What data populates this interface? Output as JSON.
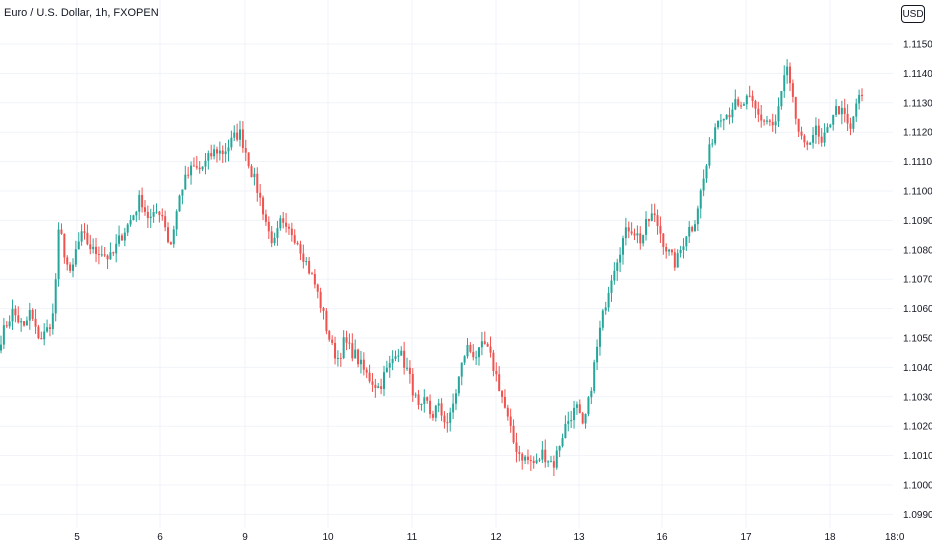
{
  "header": {
    "title": "Euro / U.S. Dollar, 1h, FXOPEN"
  },
  "currency_button": {
    "label": "USD"
  },
  "colors": {
    "up": "#26a69a",
    "down": "#ef5350",
    "grid": "#f0f3fa",
    "text": "#131722"
  },
  "chart_data": {
    "type": "candlestick",
    "symbol": "Euro / U.S. Dollar",
    "interval": "1h",
    "source": "FXOPEN",
    "currency": "USD",
    "y_tick_labels": [
      "1.11500",
      "1.11400",
      "1.11300",
      "1.11200",
      "1.11100",
      "1.11000",
      "1.10900",
      "1.10800",
      "1.10700",
      "1.10600",
      "1.10500",
      "1.10400",
      "1.10300",
      "1.10200",
      "1.10100",
      "1.10000",
      "1.09900"
    ],
    "x_tick_labels": [
      "5",
      "6",
      "9",
      "10",
      "11",
      "12",
      "13",
      "16",
      "17",
      "18",
      "18:0"
    ],
    "ylim": [
      1.0986,
      1.1162
    ],
    "grid": true,
    "anchors": [
      [
        0,
        1.105
      ],
      [
        1,
        1.1055
      ],
      [
        2,
        1.1059
      ],
      [
        3,
        1.1056
      ],
      [
        4,
        1.1053
      ],
      [
        5,
        1.1059
      ],
      [
        6,
        1.1052
      ],
      [
        7,
        1.105
      ],
      [
        8,
        1.1053
      ],
      [
        9,
        1.1058
      ],
      [
        10,
        1.1088
      ],
      [
        11,
        1.1078
      ],
      [
        12,
        1.107
      ],
      [
        13,
        1.1081
      ],
      [
        14,
        1.1085
      ],
      [
        15,
        1.1082
      ],
      [
        16,
        1.1079
      ],
      [
        17,
        1.108
      ],
      [
        18,
        1.1078
      ],
      [
        19,
        1.1077
      ],
      [
        20,
        1.1082
      ],
      [
        21,
        1.1086
      ],
      [
        22,
        1.1089
      ],
      [
        23,
        1.1093
      ],
      [
        24,
        1.1098
      ],
      [
        25,
        1.1092
      ],
      [
        26,
        1.109
      ],
      [
        27,
        1.1094
      ],
      [
        28,
        1.1091
      ],
      [
        29,
        1.108
      ],
      [
        30,
        1.1091
      ],
      [
        31,
        1.1101
      ],
      [
        32,
        1.1105
      ],
      [
        33,
        1.1108
      ],
      [
        34,
        1.1107
      ],
      [
        35,
        1.1109
      ],
      [
        36,
        1.1112
      ],
      [
        37,
        1.1114
      ],
      [
        38,
        1.1113
      ],
      [
        39,
        1.1115
      ],
      [
        40,
        1.1118
      ],
      [
        41,
        1.112
      ],
      [
        42,
        1.1114
      ],
      [
        43,
        1.1107
      ],
      [
        44,
        1.1101
      ],
      [
        45,
        1.1094
      ],
      [
        46,
        1.1086
      ],
      [
        47,
        1.1082
      ],
      [
        48,
        1.1089
      ],
      [
        49,
        1.1086
      ],
      [
        50,
        1.1086
      ],
      [
        51,
        1.1083
      ],
      [
        52,
        1.1078
      ],
      [
        53,
        1.1073
      ],
      [
        54,
        1.1068
      ],
      [
        55,
        1.1061
      ],
      [
        56,
        1.1053
      ],
      [
        57,
        1.1046
      ],
      [
        58,
        1.1043
      ],
      [
        59,
        1.1049
      ],
      [
        60,
        1.1046
      ],
      [
        61,
        1.1044
      ],
      [
        62,
        1.104
      ],
      [
        63,
        1.1037
      ],
      [
        64,
        1.1035
      ],
      [
        65,
        1.1033
      ],
      [
        66,
        1.1038
      ],
      [
        67,
        1.1041
      ],
      [
        68,
        1.1047
      ],
      [
        69,
        1.1043
      ],
      [
        70,
        1.1038
      ],
      [
        71,
        1.1031
      ],
      [
        72,
        1.1024
      ],
      [
        73,
        1.1029
      ],
      [
        74,
        1.1023
      ],
      [
        75,
        1.1027
      ],
      [
        76,
        1.1023
      ],
      [
        77,
        1.1021
      ],
      [
        78,
        1.103
      ],
      [
        79,
        1.1039
      ],
      [
        80,
        1.1047
      ],
      [
        81,
        1.1045
      ],
      [
        82,
        1.1044
      ],
      [
        83,
        1.1048
      ],
      [
        84,
        1.1044
      ],
      [
        85,
        1.1038
      ],
      [
        86,
        1.1031
      ],
      [
        87,
        1.1023
      ],
      [
        88,
        1.1015
      ],
      [
        89,
        1.1011
      ],
      [
        90,
        1.1009
      ],
      [
        91,
        1.1008
      ],
      [
        92,
        1.1007
      ],
      [
        93,
        1.1011
      ],
      [
        94,
        1.1009
      ],
      [
        95,
        1.1007
      ],
      [
        96,
        1.1014
      ],
      [
        97,
        1.102
      ],
      [
        98,
        1.1024
      ],
      [
        99,
        1.1026
      ],
      [
        100,
        1.1019
      ],
      [
        101,
        1.1028
      ],
      [
        102,
        1.1041
      ],
      [
        103,
        1.1053
      ],
      [
        104,
        1.1063
      ],
      [
        105,
        1.1072
      ],
      [
        106,
        1.1078
      ],
      [
        107,
        1.1084
      ],
      [
        108,
        1.1088
      ],
      [
        109,
        1.1086
      ],
      [
        110,
        1.1083
      ],
      [
        111,
        1.1089
      ],
      [
        112,
        1.1092
      ],
      [
        113,
        1.1088
      ],
      [
        114,
        1.1082
      ],
      [
        115,
        1.1078
      ],
      [
        116,
        1.1075
      ],
      [
        117,
        1.1081
      ],
      [
        118,
        1.1087
      ],
      [
        119,
        1.1088
      ],
      [
        120,
        1.1097
      ],
      [
        121,
        1.1106
      ],
      [
        122,
        1.1116
      ],
      [
        123,
        1.1124
      ],
      [
        124,
        1.1127
      ],
      [
        125,
        1.1126
      ],
      [
        126,
        1.113
      ],
      [
        127,
        1.1127
      ],
      [
        128,
        1.1131
      ],
      [
        129,
        1.113
      ],
      [
        130,
        1.1126
      ],
      [
        131,
        1.1124
      ],
      [
        132,
        1.1124
      ],
      [
        133,
        1.1121
      ],
      [
        134,
        1.1132
      ],
      [
        135,
        1.1142
      ],
      [
        136,
        1.1131
      ],
      [
        137,
        1.1121
      ],
      [
        138,
        1.1114
      ],
      [
        139,
        1.1118
      ],
      [
        140,
        1.1121
      ],
      [
        141,
        1.1115
      ],
      [
        142,
        1.112
      ],
      [
        143,
        1.1127
      ],
      [
        144,
        1.1128
      ],
      [
        145,
        1.1125
      ],
      [
        146,
        1.112
      ],
      [
        147,
        1.113
      ],
      [
        148,
        1.1132
      ]
    ]
  }
}
